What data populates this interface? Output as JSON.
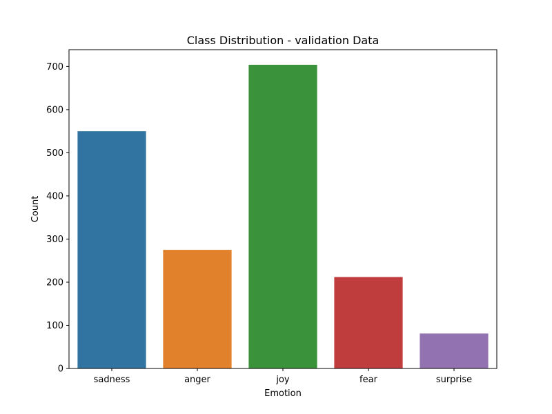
{
  "chart_data": {
    "type": "bar",
    "title": "Class Distribution - validation Data",
    "xlabel": "Emotion",
    "ylabel": "Count",
    "categories": [
      "sadness",
      "anger",
      "joy",
      "fear",
      "surprise"
    ],
    "values": [
      550,
      275,
      704,
      212,
      81
    ],
    "colors": [
      "#3274a1",
      "#e1812c",
      "#3a923a",
      "#c03d3e",
      "#9372b2"
    ],
    "ylim": [
      0,
      739
    ],
    "yticks": [
      0,
      100,
      200,
      300,
      400,
      500,
      600,
      700
    ],
    "grid": false,
    "legend": "none"
  }
}
